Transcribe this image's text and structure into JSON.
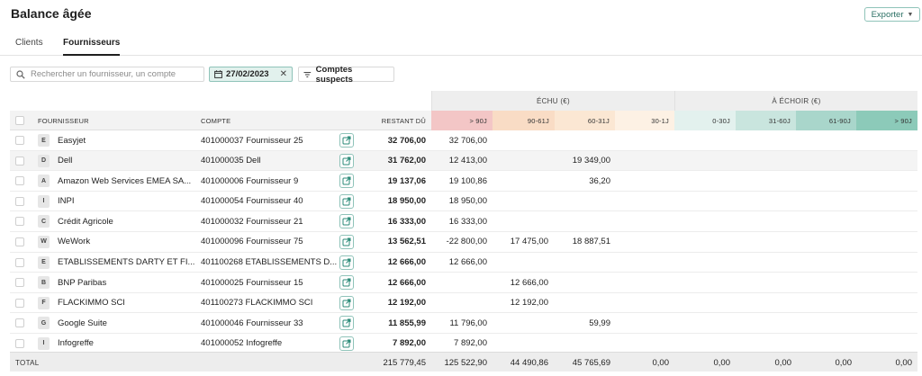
{
  "page": {
    "title": "Balance âgée",
    "export_label": "Exporter"
  },
  "tabs": [
    {
      "label": "Clients",
      "active": false
    },
    {
      "label": "Fournisseurs",
      "active": true
    }
  ],
  "toolbar": {
    "search_placeholder": "Rechercher un fournisseur, un compte",
    "date_filter": "27/02/2023",
    "suspects_label": "Comptes suspects"
  },
  "table": {
    "group_headers": {
      "echu": "ÉCHU (€)",
      "echoir": "À ÉCHOIR (€)"
    },
    "columns": {
      "fournisseur": "FOURNISSEUR",
      "compte": "COMPTE",
      "restant": "RESTANT DÛ",
      "b90": "> 90J",
      "b61": "90-61J",
      "b31": "60-31J",
      "b1": "30-1J",
      "n30": "0-30J",
      "n60": "31-60J",
      "n90": "61-90J",
      "n91": "> 90J"
    },
    "bucket_colors": {
      "b90": "#f3c6c6",
      "b61": "#f9dcc5",
      "b31": "#fbe7d3",
      "b1": "#fdf1e4",
      "n30": "#e3f1ee",
      "n60": "#c9e5de",
      "n90": "#a9d6cb",
      "n91": "#8ccab9"
    },
    "rows": [
      {
        "initial": "E",
        "name": "Easyjet",
        "account": "401000037 Fournisseur 25",
        "restant": "32 706,00",
        "b90": "32 706,00",
        "b61": "",
        "b31": ""
      },
      {
        "initial": "D",
        "name": "Dell",
        "account": "401000035 Dell",
        "restant": "31 762,00",
        "b90": "12 413,00",
        "b61": "",
        "b31": "19 349,00"
      },
      {
        "initial": "A",
        "name": "Amazon Web Services EMEA SA...",
        "account": "401000006 Fournisseur 9",
        "restant": "19 137,06",
        "b90": "19 100,86",
        "b61": "",
        "b31": "36,20"
      },
      {
        "initial": "I",
        "name": "INPI",
        "account": "401000054 Fournisseur 40",
        "restant": "18 950,00",
        "b90": "18 950,00",
        "b61": "",
        "b31": ""
      },
      {
        "initial": "C",
        "name": "Crédit Agricole",
        "account": "401000032 Fournisseur 21",
        "restant": "16 333,00",
        "b90": "16 333,00",
        "b61": "",
        "b31": ""
      },
      {
        "initial": "W",
        "name": "WeWork",
        "account": "401000096 Fournisseur 75",
        "restant": "13 562,51",
        "b90": "-22 800,00",
        "b61": "17 475,00",
        "b31": "18 887,51"
      },
      {
        "initial": "E",
        "name": "ETABLISSEMENTS DARTY ET FI...",
        "account": "401100268 ETABLISSEMENTS D...",
        "restant": "12 666,00",
        "b90": "12 666,00",
        "b61": "",
        "b31": ""
      },
      {
        "initial": "B",
        "name": "BNP Paribas",
        "account": "401000025 Fournisseur 15",
        "restant": "12 666,00",
        "b90": "",
        "b61": "12 666,00",
        "b31": ""
      },
      {
        "initial": "F",
        "name": "FLACKIMMO SCI",
        "account": "401100273 FLACKIMMO SCI",
        "restant": "12 192,00",
        "b90": "",
        "b61": "12 192,00",
        "b31": ""
      },
      {
        "initial": "G",
        "name": "Google Suite",
        "account": "401000046 Fournisseur 33",
        "restant": "11 855,99",
        "b90": "11 796,00",
        "b61": "",
        "b31": "59,99"
      },
      {
        "initial": "I",
        "name": "Infogreffe",
        "account": "401000052 Infogreffe",
        "restant": "7 892,00",
        "b90": "7 892,00",
        "b61": "",
        "b31": ""
      }
    ],
    "total": {
      "label": "TOTAL",
      "restant": "215 779,45",
      "b90": "125 522,90",
      "b61": "44 490,86",
      "b31": "45 765,69",
      "b1": "0,00",
      "n30": "0,00",
      "n60": "0,00",
      "n90": "0,00",
      "n91": "0,00"
    }
  }
}
